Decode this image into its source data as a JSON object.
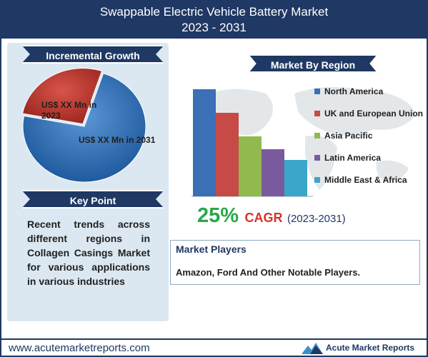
{
  "header": {
    "title_line1": "Swappable Electric Vehicle Battery Market",
    "title_line2": "2023 - 2031"
  },
  "left": {
    "growth_ribbon": "Incremental Growth",
    "pie_label_2023": "US$ XX Mn in 2023",
    "pie_label_2031": "US$ XX Mn in 2031",
    "keypoint_ribbon": "Key Point",
    "keypoint_text": "Recent trends across different regions in Collagen Casings Market for various applications in various industries"
  },
  "region": {
    "ribbon": "Market By Region"
  },
  "cagr": {
    "value": "25%",
    "label": "CAGR",
    "period": "(2023-2031)"
  },
  "players": {
    "title": "Market Players",
    "text": "Amazon, Ford And Other Notable Players."
  },
  "footer": {
    "url": "www.acutemarketreports.com",
    "logo_text": "Acute Market Reports"
  },
  "colors": {
    "navy": "#1f3864",
    "pie_2023": "#c0392b",
    "pie_2031": "#2e6fb5",
    "cagr_green": "#2aa84a",
    "cagr_red": "#d9312b"
  },
  "chart_data": [
    {
      "type": "pie",
      "labels": [
        "US$ XX Mn in 2023",
        "US$ XX Mn in 2031"
      ],
      "values": [
        27,
        73
      ],
      "colors": [
        "#c0392b",
        "#2e6fb5"
      ]
    },
    {
      "type": "bar",
      "categories": [
        "North America",
        "UK and European Union",
        "Asia Pacific",
        "Latin America",
        "Middle East & Africa"
      ],
      "values": [
        100,
        78,
        56,
        44,
        34
      ],
      "colors": [
        "#3b6fb6",
        "#c64a45",
        "#92b94d",
        "#7a5a9e",
        "#3aa6c9"
      ],
      "legend_position": "right",
      "grid": false
    }
  ]
}
